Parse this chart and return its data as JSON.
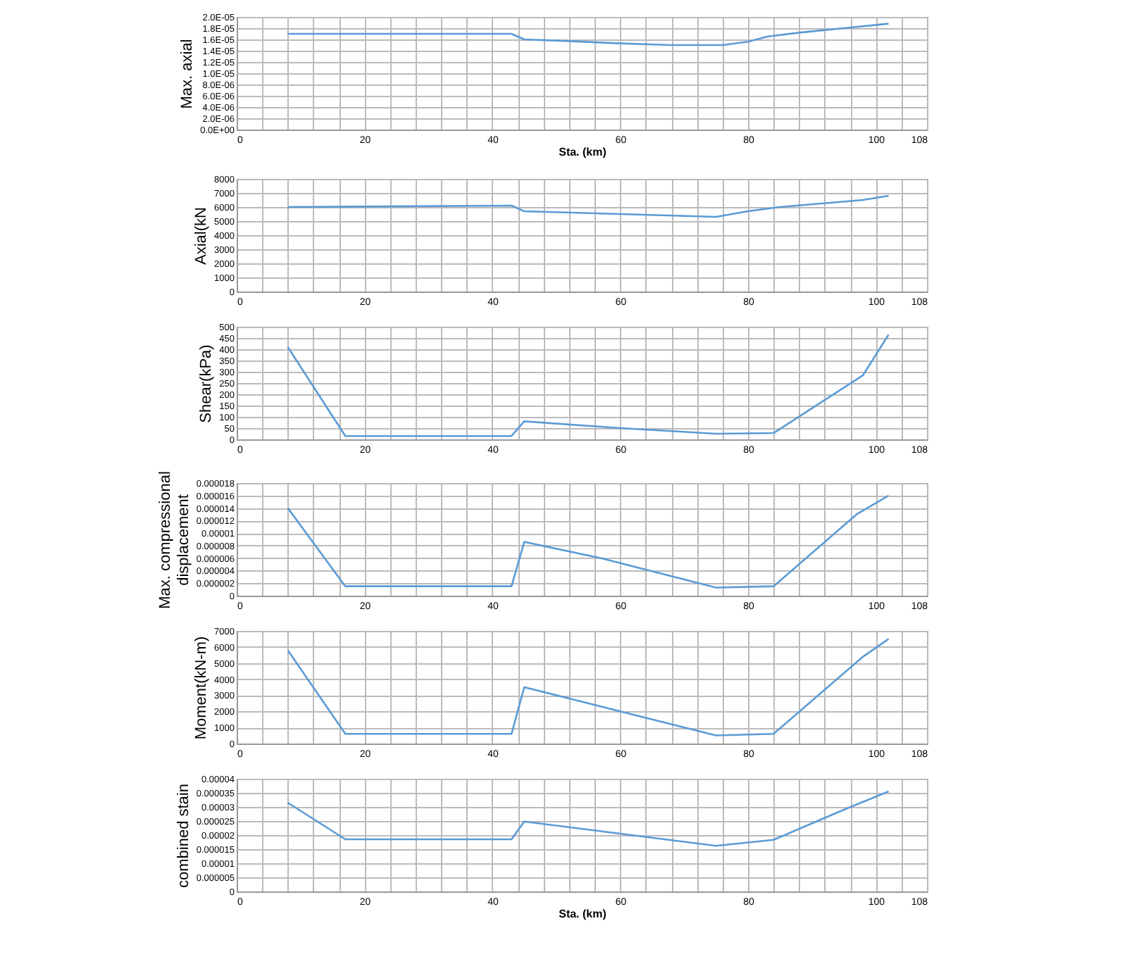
{
  "chart_data": [
    {
      "type": "line",
      "ylabel": "Max. axial",
      "xlabel": "Sta. (km)",
      "xlim": [
        0,
        108
      ],
      "xticks": [
        0,
        {
          "value": 4,
          "label": null
        },
        {
          "value": 8,
          "label": null
        },
        {
          "value": 12,
          "label": null
        },
        {
          "value": 16,
          "label": null
        },
        20,
        {
          "value": 24,
          "label": null
        },
        {
          "value": 28,
          "label": null
        },
        {
          "value": 32,
          "label": null
        },
        {
          "value": 36,
          "label": null
        },
        40,
        {
          "value": 44,
          "label": null
        },
        {
          "value": 48,
          "label": null
        },
        {
          "value": 52,
          "label": null
        },
        {
          "value": 56,
          "label": null
        },
        60,
        {
          "value": 64,
          "label": null
        },
        {
          "value": 68,
          "label": null
        },
        {
          "value": 72,
          "label": null
        },
        {
          "value": 76,
          "label": null
        },
        80,
        {
          "value": 84,
          "label": null
        },
        {
          "value": 88,
          "label": null
        },
        {
          "value": 92,
          "label": null
        },
        {
          "value": 96,
          "label": null
        },
        100,
        {
          "value": 104,
          "label": null
        },
        108
      ],
      "ylim": [
        0,
        2e-05
      ],
      "yticks": [
        {
          "value": 0,
          "label": "0.0E+00"
        },
        {
          "value": 2e-06,
          "label": "2.0E-06"
        },
        {
          "value": 4e-06,
          "label": "4.0E-06"
        },
        {
          "value": 6e-06,
          "label": "6.0E-06"
        },
        {
          "value": 8e-06,
          "label": "8.0E-06"
        },
        {
          "value": 1e-05,
          "label": "1.0E-05"
        },
        {
          "value": 1.2e-05,
          "label": "1.2E-05"
        },
        {
          "value": 1.4e-05,
          "label": "1.4E-05"
        },
        {
          "value": 1.6e-05,
          "label": "1.6E-05"
        },
        {
          "value": 1.8e-05,
          "label": "1.8E-05"
        },
        {
          "value": 2e-05,
          "label": "2.0E-05"
        }
      ],
      "grid": true,
      "series": [
        {
          "color": "#5b9bd5",
          "x": [
            8,
            43,
            45,
            52,
            60,
            68,
            76,
            80,
            83,
            88,
            95,
            102
          ],
          "values": [
            1.7e-05,
            1.7e-05,
            1.6e-05,
            1.57e-05,
            1.53e-05,
            1.5e-05,
            1.5e-05,
            1.56e-05,
            1.65e-05,
            1.72e-05,
            1.8e-05,
            1.88e-05
          ]
        }
      ]
    },
    {
      "type": "line",
      "ylabel": "Axial(kN",
      "xlim": [
        0,
        108
      ],
      "xticks": [
        0,
        {
          "value": 4,
          "label": null
        },
        {
          "value": 8,
          "label": null
        },
        {
          "value": 12,
          "label": null
        },
        {
          "value": 16,
          "label": null
        },
        20,
        {
          "value": 24,
          "label": null
        },
        {
          "value": 28,
          "label": null
        },
        {
          "value": 32,
          "label": null
        },
        {
          "value": 36,
          "label": null
        },
        40,
        {
          "value": 44,
          "label": null
        },
        {
          "value": 48,
          "label": null
        },
        {
          "value": 52,
          "label": null
        },
        {
          "value": 56,
          "label": null
        },
        60,
        {
          "value": 64,
          "label": null
        },
        {
          "value": 68,
          "label": null
        },
        {
          "value": 72,
          "label": null
        },
        {
          "value": 76,
          "label": null
        },
        80,
        {
          "value": 84,
          "label": null
        },
        {
          "value": 88,
          "label": null
        },
        {
          "value": 92,
          "label": null
        },
        {
          "value": 96,
          "label": null
        },
        100,
        {
          "value": 104,
          "label": null
        },
        108
      ],
      "ylim": [
        0,
        8000
      ],
      "yticks": [
        0,
        1000,
        2000,
        3000,
        4000,
        5000,
        6000,
        7000,
        8000
      ],
      "grid": true,
      "series": [
        {
          "color": "#5b9bd5",
          "x": [
            8,
            43,
            45,
            60,
            75,
            80,
            85,
            98,
            102
          ],
          "values": [
            6000,
            6100,
            5700,
            5500,
            5300,
            5700,
            6000,
            6500,
            6800
          ]
        }
      ]
    },
    {
      "type": "line",
      "ylabel": "Shear(kPa)",
      "xlim": [
        0,
        108
      ],
      "xticks": [
        0,
        {
          "value": 4,
          "label": null
        },
        {
          "value": 8,
          "label": null
        },
        {
          "value": 12,
          "label": null
        },
        {
          "value": 16,
          "label": null
        },
        20,
        {
          "value": 24,
          "label": null
        },
        {
          "value": 28,
          "label": null
        },
        {
          "value": 32,
          "label": null
        },
        {
          "value": 36,
          "label": null
        },
        40,
        {
          "value": 44,
          "label": null
        },
        {
          "value": 48,
          "label": null
        },
        {
          "value": 52,
          "label": null
        },
        {
          "value": 56,
          "label": null
        },
        60,
        {
          "value": 64,
          "label": null
        },
        {
          "value": 68,
          "label": null
        },
        {
          "value": 72,
          "label": null
        },
        {
          "value": 76,
          "label": null
        },
        80,
        {
          "value": 84,
          "label": null
        },
        {
          "value": 88,
          "label": null
        },
        {
          "value": 92,
          "label": null
        },
        {
          "value": 96,
          "label": null
        },
        100,
        {
          "value": 104,
          "label": null
        },
        108
      ],
      "ylim": [
        0,
        500
      ],
      "yticks": [
        0,
        50,
        100,
        150,
        200,
        250,
        300,
        350,
        400,
        450,
        500
      ],
      "grid": true,
      "series": [
        {
          "color": "#5b9bd5",
          "x": [
            8,
            17,
            43,
            45,
            60,
            75,
            84,
            98,
            102
          ],
          "values": [
            410,
            15,
            15,
            80,
            50,
            25,
            28,
            285,
            465
          ]
        }
      ]
    },
    {
      "type": "line",
      "ylabel": "Max. compressional\ndisplacement",
      "xlim": [
        0,
        108
      ],
      "xticks": [
        0,
        {
          "value": 4,
          "label": null
        },
        {
          "value": 8,
          "label": null
        },
        {
          "value": 12,
          "label": null
        },
        {
          "value": 16,
          "label": null
        },
        20,
        {
          "value": 24,
          "label": null
        },
        {
          "value": 28,
          "label": null
        },
        {
          "value": 32,
          "label": null
        },
        {
          "value": 36,
          "label": null
        },
        40,
        {
          "value": 44,
          "label": null
        },
        {
          "value": 48,
          "label": null
        },
        {
          "value": 52,
          "label": null
        },
        {
          "value": 56,
          "label": null
        },
        60,
        {
          "value": 64,
          "label": null
        },
        {
          "value": 68,
          "label": null
        },
        {
          "value": 72,
          "label": null
        },
        {
          "value": 76,
          "label": null
        },
        80,
        {
          "value": 84,
          "label": null
        },
        {
          "value": 88,
          "label": null
        },
        {
          "value": 92,
          "label": null
        },
        {
          "value": 96,
          "label": null
        },
        100,
        {
          "value": 104,
          "label": null
        },
        108
      ],
      "ylim": [
        0,
        1.8e-05
      ],
      "yticks": [
        0,
        {
          "value": 2e-06,
          "label": "0.000002"
        },
        {
          "value": 4e-06,
          "label": "0.000004"
        },
        {
          "value": 6e-06,
          "label": "0.000006"
        },
        {
          "value": 8e-06,
          "label": "0.000008"
        },
        {
          "value": 1e-05,
          "label": "0.00001"
        },
        {
          "value": 1.2e-05,
          "label": "0.000012"
        },
        {
          "value": 1.4e-05,
          "label": "0.000014"
        },
        {
          "value": 1.6e-05,
          "label": "0.000016"
        },
        {
          "value": 1.8e-05,
          "label": "0.000018"
        }
      ],
      "grid": true,
      "series": [
        {
          "color": "#5b9bd5",
          "x": [
            8,
            17,
            43,
            45,
            57,
            75,
            84,
            97,
            102
          ],
          "values": [
            1.4e-05,
            1.5e-06,
            1.5e-06,
            8.6e-06,
            6e-06,
            1.3e-06,
            1.5e-06,
            1.3e-05,
            1.6e-05
          ]
        }
      ]
    },
    {
      "type": "line",
      "ylabel": "Moment(kN-m)",
      "xlim": [
        0,
        108
      ],
      "xticks": [
        0,
        {
          "value": 4,
          "label": null
        },
        {
          "value": 8,
          "label": null
        },
        {
          "value": 12,
          "label": null
        },
        {
          "value": 16,
          "label": null
        },
        20,
        {
          "value": 24,
          "label": null
        },
        {
          "value": 28,
          "label": null
        },
        {
          "value": 32,
          "label": null
        },
        {
          "value": 36,
          "label": null
        },
        40,
        {
          "value": 44,
          "label": null
        },
        {
          "value": 48,
          "label": null
        },
        {
          "value": 52,
          "label": null
        },
        {
          "value": 56,
          "label": null
        },
        60,
        {
          "value": 64,
          "label": null
        },
        {
          "value": 68,
          "label": null
        },
        {
          "value": 72,
          "label": null
        },
        {
          "value": 76,
          "label": null
        },
        80,
        {
          "value": 84,
          "label": null
        },
        {
          "value": 88,
          "label": null
        },
        {
          "value": 92,
          "label": null
        },
        {
          "value": 96,
          "label": null
        },
        100,
        {
          "value": 104,
          "label": null
        },
        108
      ],
      "ylim": [
        0,
        7000
      ],
      "yticks": [
        0,
        1000,
        2000,
        3000,
        4000,
        5000,
        6000,
        7000
      ],
      "grid": true,
      "series": [
        {
          "color": "#5b9bd5",
          "x": [
            8,
            17,
            43,
            45,
            75,
            84,
            98,
            102
          ],
          "values": [
            5800,
            600,
            600,
            3500,
            500,
            600,
            5400,
            6500
          ]
        }
      ]
    },
    {
      "type": "line",
      "ylabel": "combined stain",
      "xlabel": "Sta. (km)",
      "xlim": [
        0,
        108
      ],
      "xticks": [
        0,
        {
          "value": 4,
          "label": null
        },
        {
          "value": 8,
          "label": null
        },
        {
          "value": 12,
          "label": null
        },
        {
          "value": 16,
          "label": null
        },
        20,
        {
          "value": 24,
          "label": null
        },
        {
          "value": 28,
          "label": null
        },
        {
          "value": 32,
          "label": null
        },
        {
          "value": 36,
          "label": null
        },
        40,
        {
          "value": 44,
          "label": null
        },
        {
          "value": 48,
          "label": null
        },
        {
          "value": 52,
          "label": null
        },
        {
          "value": 56,
          "label": null
        },
        60,
        {
          "value": 64,
          "label": null
        },
        {
          "value": 68,
          "label": null
        },
        {
          "value": 72,
          "label": null
        },
        {
          "value": 76,
          "label": null
        },
        80,
        {
          "value": 84,
          "label": null
        },
        {
          "value": 88,
          "label": null
        },
        {
          "value": 92,
          "label": null
        },
        {
          "value": 96,
          "label": null
        },
        100,
        {
          "value": 104,
          "label": null
        },
        108
      ],
      "ylim": [
        0,
        4e-05
      ],
      "yticks": [
        0,
        {
          "value": 5e-06,
          "label": "0.000005"
        },
        {
          "value": 1e-05,
          "label": "0.00001"
        },
        {
          "value": 1.5e-05,
          "label": "0.000015"
        },
        {
          "value": 2e-05,
          "label": "0.00002"
        },
        {
          "value": 2.5e-05,
          "label": "0.000025"
        },
        {
          "value": 3e-05,
          "label": "0.00003"
        },
        {
          "value": 3.5e-05,
          "label": "0.000035"
        },
        {
          "value": 4e-05,
          "label": "0.00004"
        }
      ],
      "grid": true,
      "series": [
        {
          "color": "#5b9bd5",
          "x": [
            8,
            17,
            43,
            45,
            60,
            75,
            84,
            95,
            102
          ],
          "values": [
            3.15e-05,
            1.85e-05,
            1.85e-05,
            2.48e-05,
            2.05e-05,
            1.62e-05,
            1.83e-05,
            2.9e-05,
            3.55e-05
          ]
        }
      ]
    }
  ]
}
